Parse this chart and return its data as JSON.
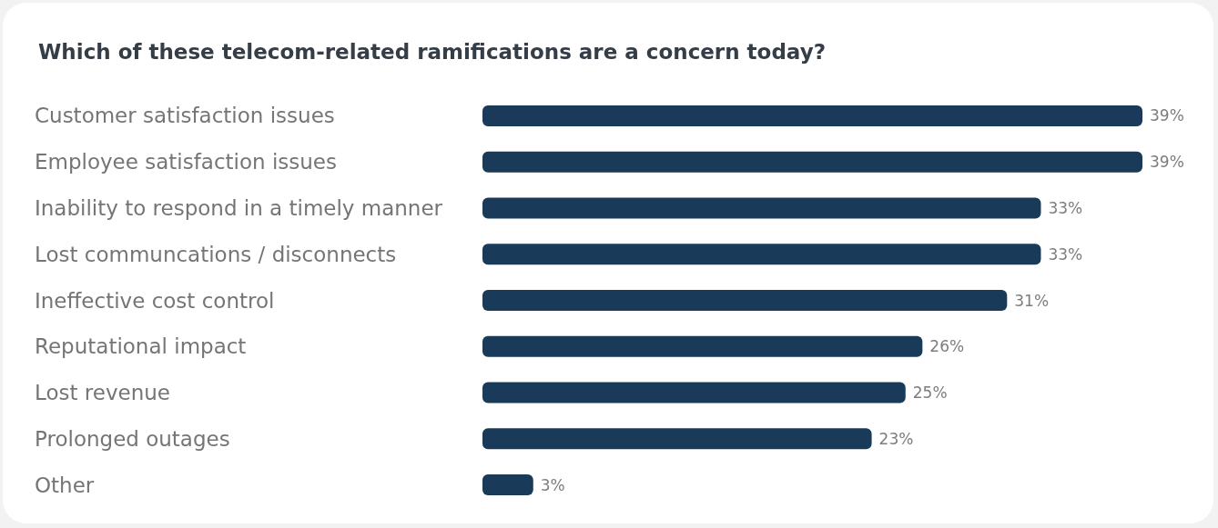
{
  "chart_data": {
    "type": "bar",
    "orientation": "horizontal",
    "title": "Which of these telecom-related ramifications are a concern today?",
    "categories": [
      "Customer satisfaction issues",
      "Employee satisfaction issues",
      "Inability to respond in a timely manner",
      "Lost communcations / disconnects",
      "Ineffective cost control",
      "Reputational impact",
      "Lost revenue",
      "Prolonged outages",
      "Other"
    ],
    "values": [
      39,
      39,
      33,
      33,
      31,
      26,
      25,
      23,
      3
    ],
    "value_labels": [
      "39%",
      "39%",
      "33%",
      "33%",
      "31%",
      "26%",
      "25%",
      "23%",
      "3%"
    ],
    "color": "#193a58"
  }
}
